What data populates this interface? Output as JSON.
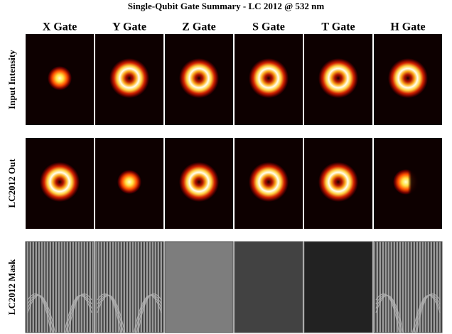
{
  "title": "Single-Qubit Gate Summary - LC 2012 @ 532 nm",
  "columns": [
    "X Gate",
    "Y Gate",
    "Z Gate",
    "S Gate",
    "T Gate",
    "H Gate"
  ],
  "rows": [
    "Input Intensity",
    "LC2012 Out",
    "LC2012 Mask"
  ]
}
